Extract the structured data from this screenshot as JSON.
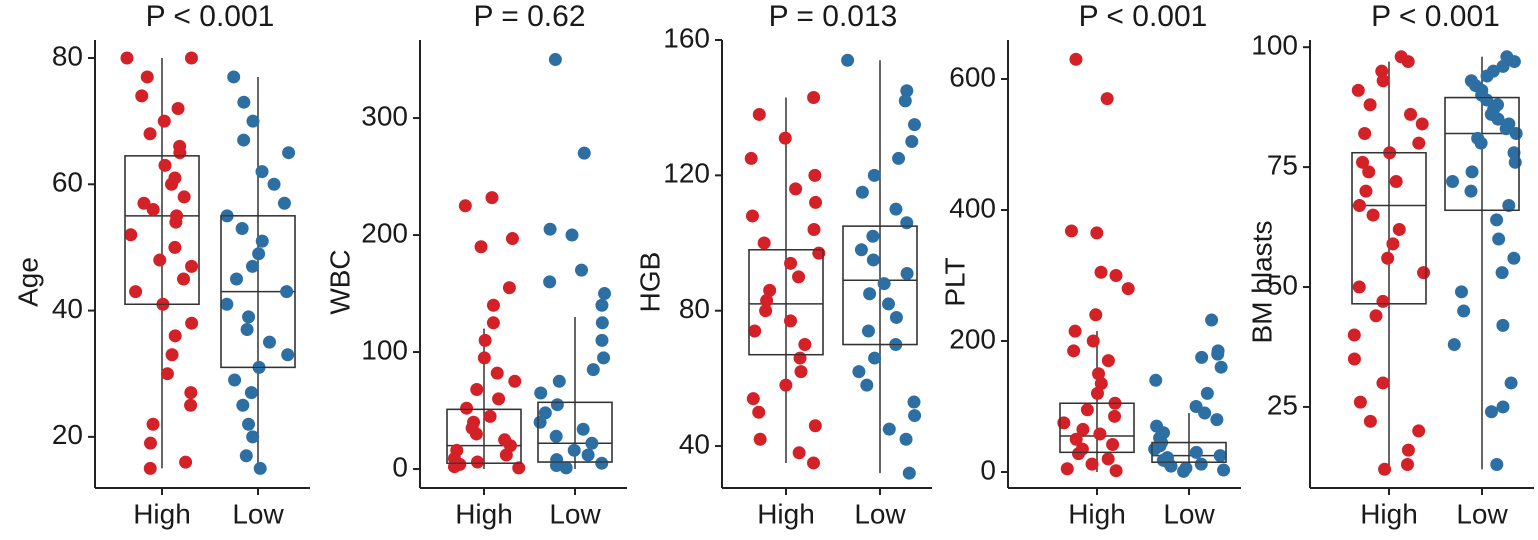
{
  "chart_data": [
    {
      "type": "box",
      "title": "P < 0.001",
      "ylabel": "Age",
      "categories": [
        "High",
        "Low"
      ],
      "colors": [
        "#d42027",
        "#2e6fa3"
      ],
      "ylim": [
        11.9,
        82.85
      ],
      "yticks": [
        20,
        40,
        60,
        80
      ],
      "boxes": [
        {
          "min": 15,
          "q1": 41,
          "median": 55,
          "q3": 64.5,
          "max": 80
        },
        {
          "min": 15,
          "q1": 31,
          "median": 43,
          "q3": 55,
          "max": 77
        }
      ],
      "points": [
        [
          80,
          80,
          77,
          74,
          72,
          70,
          68,
          66,
          65,
          63,
          61,
          60,
          58,
          57,
          56,
          55,
          54,
          52,
          50,
          48,
          47,
          45,
          43,
          41,
          38,
          36,
          33,
          30,
          27,
          25,
          22,
          19,
          16,
          15
        ],
        [
          77,
          73,
          70,
          67,
          65,
          62,
          60,
          57,
          55,
          53,
          51,
          49,
          47,
          45,
          43,
          41,
          39,
          37,
          35,
          33,
          31,
          29,
          27,
          25,
          22,
          20,
          17,
          15
        ]
      ]
    },
    {
      "type": "box",
      "title": "P = 0.62",
      "ylabel": "WBC",
      "categories": [
        "High",
        "Low"
      ],
      "colors": [
        "#d42027",
        "#2e6fa3"
      ],
      "ylim": [
        -16.2,
        366.7
      ],
      "yticks": [
        0,
        100,
        200,
        300
      ],
      "boxes": [
        {
          "min": 0,
          "q1": 5,
          "median": 20,
          "q3": 51,
          "max": 120
        },
        {
          "min": 0,
          "q1": 6,
          "median": 22,
          "q3": 57,
          "max": 130
        }
      ],
      "points": [
        [
          232,
          225,
          197,
          190,
          155,
          140,
          125,
          110,
          95,
          82,
          75,
          68,
          60,
          52,
          45,
          40,
          35,
          30,
          25,
          20,
          16,
          12,
          9,
          6,
          4,
          2,
          1
        ],
        [
          350,
          270,
          205,
          200,
          170,
          160,
          150,
          140,
          125,
          110,
          95,
          85,
          75,
          65,
          55,
          48,
          40,
          34,
          28,
          22,
          16,
          12,
          8,
          5,
          3,
          1
        ]
      ]
    },
    {
      "type": "box",
      "title": "P = 0.013",
      "ylabel": "HGB",
      "categories": [
        "High",
        "Low"
      ],
      "colors": [
        "#d42027",
        "#2e6fa3"
      ],
      "ylim": [
        27.6,
        160
      ],
      "yticks": [
        40,
        80,
        120,
        160
      ],
      "boxes": [
        {
          "min": 35,
          "q1": 67,
          "median": 82,
          "q3": 98,
          "max": 143
        },
        {
          "min": 32,
          "q1": 70,
          "median": 89,
          "q3": 105,
          "max": 154
        }
      ],
      "points": [
        [
          143,
          138,
          131,
          125,
          120,
          116,
          112,
          108,
          104,
          100,
          97,
          94,
          90,
          86,
          83,
          80,
          77,
          74,
          70,
          66,
          62,
          58,
          54,
          50,
          46,
          42,
          38,
          35
        ],
        [
          154,
          145,
          142,
          135,
          130,
          125,
          120,
          115,
          110,
          106,
          102,
          98,
          95,
          91,
          88,
          85,
          82,
          78,
          74,
          70,
          66,
          62,
          58,
          53,
          49,
          45,
          42,
          32
        ]
      ]
    },
    {
      "type": "box",
      "title": "P < 0.001",
      "ylabel": "PLT",
      "categories": [
        "High",
        "Low"
      ],
      "colors": [
        "#d42027",
        "#2e6fa3"
      ],
      "ylim": [
        -24.4,
        659.5
      ],
      "yticks": [
        0,
        200,
        400,
        600
      ],
      "boxes": [
        {
          "min": 0,
          "q1": 30,
          "median": 55,
          "q3": 105,
          "max": 215
        },
        {
          "min": 0,
          "q1": 15,
          "median": 25,
          "q3": 45,
          "max": 90
        }
      ],
      "points": [
        [
          630,
          570,
          368,
          365,
          305,
          300,
          280,
          240,
          215,
          200,
          185,
          170,
          150,
          135,
          120,
          105,
          95,
          85,
          75,
          65,
          58,
          50,
          42,
          35,
          28,
          20,
          12,
          5,
          2
        ],
        [
          232,
          185,
          180,
          175,
          160,
          140,
          120,
          100,
          90,
          80,
          70,
          60,
          52,
          45,
          40,
          35,
          30,
          25,
          22,
          18,
          15,
          12,
          9,
          6,
          3,
          1
        ]
      ]
    },
    {
      "type": "box",
      "title": "P < 0.001",
      "ylabel": "BM blasts",
      "categories": [
        "High",
        "Low"
      ],
      "colors": [
        "#d42027",
        "#2e6fa3"
      ],
      "ylim": [
        8.1,
        101.5
      ],
      "yticks": [
        25,
        50,
        75,
        100
      ],
      "boxes": [
        {
          "min": 12,
          "q1": 46.5,
          "median": 67,
          "q3": 78,
          "max": 97
        },
        {
          "min": 12,
          "q1": 66,
          "median": 82,
          "q3": 89.5,
          "max": 98
        }
      ],
      "points": [
        [
          98,
          97,
          95,
          93,
          91,
          88,
          86,
          84,
          82,
          80,
          78,
          76,
          74,
          72,
          70,
          67,
          65,
          62,
          59,
          56,
          53,
          50,
          47,
          44,
          40,
          35,
          30,
          26,
          22,
          20,
          16,
          13,
          12
        ],
        [
          98,
          97,
          96,
          95,
          94,
          93,
          92,
          91,
          90,
          89,
          88,
          87,
          86,
          85,
          84,
          83,
          82,
          81,
          80,
          78,
          76,
          74,
          72,
          70,
          67,
          64,
          60,
          56,
          53,
          49,
          45,
          42,
          38,
          30,
          25,
          24,
          13
        ]
      ]
    }
  ]
}
